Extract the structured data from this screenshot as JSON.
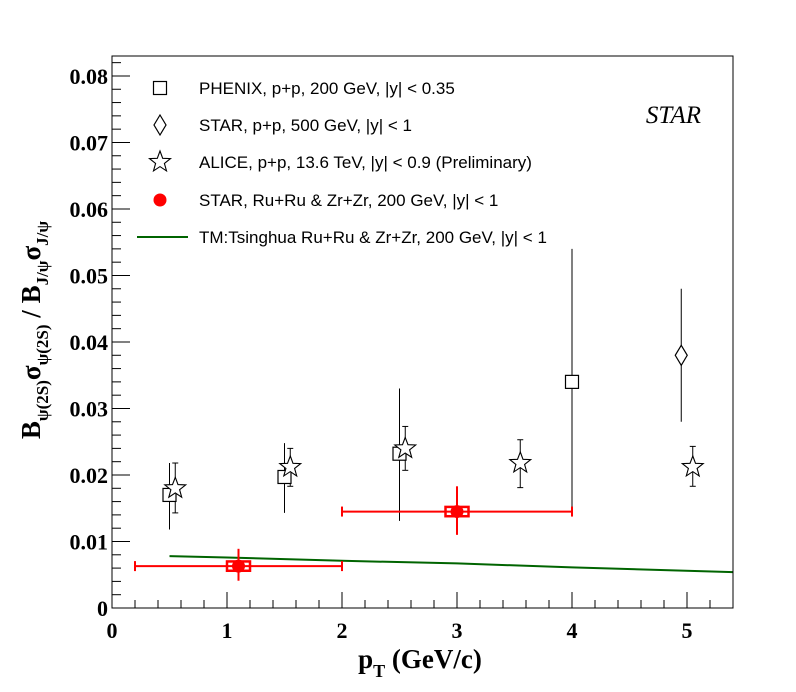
{
  "chart_data": {
    "type": "scatter",
    "experiment_label": "STAR",
    "xlabel": {
      "main": "p",
      "sub": "T",
      "rest": " (GeV/c)"
    },
    "ylabel": {
      "parts": [
        {
          "t": "B",
          "s": "n"
        },
        {
          "t": "ψ(2S)",
          "s": "sub"
        },
        {
          "t": "σ",
          "s": "n"
        },
        {
          "t": "ψ(2S)",
          "s": "sub"
        },
        {
          "t": " / B",
          "s": "n"
        },
        {
          "t": "J/ψ",
          "s": "sub"
        },
        {
          "t": "σ",
          "s": "n"
        },
        {
          "t": "J/ψ",
          "s": "sub"
        }
      ]
    },
    "xlim": [
      0,
      5.4
    ],
    "ylim": [
      0,
      0.083
    ],
    "x_ticks": [
      0,
      1,
      2,
      3,
      4,
      5
    ],
    "x_tick_labels": [
      "0",
      "1",
      "2",
      "3",
      "4",
      "5"
    ],
    "y_ticks": [
      0,
      0.01,
      0.02,
      0.03,
      0.04,
      0.05,
      0.06,
      0.07,
      0.08
    ],
    "y_tick_labels": [
      "0",
      "0.01",
      "0.02",
      "0.03",
      "0.04",
      "0.05",
      "0.06",
      "0.07",
      "0.08"
    ],
    "legend_position": "top-left",
    "series": [
      {
        "name": "PHENIX, p+p, 200 GeV, |y| < 0.35",
        "marker": "open-square",
        "color": "#000000",
        "points": [
          {
            "x": 0.5,
            "y": 0.017,
            "ylo": 0.0118,
            "yhi": 0.0218
          },
          {
            "x": 1.5,
            "y": 0.0197,
            "ylo": 0.0143,
            "yhi": 0.0248
          },
          {
            "x": 2.5,
            "y": 0.0232,
            "ylo": 0.0131,
            "yhi": 0.033
          },
          {
            "x": 4.0,
            "y": 0.034,
            "ylo": 0.0145,
            "yhi": 0.054
          }
        ]
      },
      {
        "name": "STAR, p+p, 500 GeV, |y| < 1",
        "marker": "open-diamond",
        "color": "#000000",
        "points": [
          {
            "x": 4.95,
            "y": 0.038,
            "ylo": 0.028,
            "yhi": 0.048
          }
        ]
      },
      {
        "name": "ALICE, p+p, 13.6 TeV, |y| < 0.9 (Preliminary)",
        "marker": "open-star",
        "color": "#000000",
        "points": [
          {
            "x": 0.55,
            "y": 0.018,
            "ylo": 0.0143,
            "yhi": 0.0218
          },
          {
            "x": 1.55,
            "y": 0.0212,
            "ylo": 0.0183,
            "yhi": 0.024
          },
          {
            "x": 2.55,
            "y": 0.024,
            "ylo": 0.0207,
            "yhi": 0.0273
          },
          {
            "x": 3.55,
            "y": 0.0218,
            "ylo": 0.0181,
            "yhi": 0.0253
          },
          {
            "x": 5.05,
            "y": 0.0212,
            "ylo": 0.0183,
            "yhi": 0.0243
          }
        ]
      },
      {
        "name": "STAR, Ru+Ru & Zr+Zr, 200 GeV, |y| < 1",
        "marker": "filled-circle",
        "color": "#ff0000",
        "points": [
          {
            "x": 1.1,
            "y": 0.0063,
            "xlo": 0.2,
            "xhi": 2.0,
            "ylo": 0.0041,
            "yhi": 0.0089,
            "sys_dx": 0.1,
            "sys_dy": 0.0007
          },
          {
            "x": 3.0,
            "y": 0.0145,
            "xlo": 2.0,
            "xhi": 4.0,
            "ylo": 0.011,
            "yhi": 0.0183,
            "sys_dx": 0.1,
            "sys_dy": 0.0007
          }
        ]
      },
      {
        "name": "TM:Tsinghua Ru+Ru & Zr+Zr, 200 GeV, |y| < 1",
        "marker": "line",
        "color": "#006400",
        "x": [
          0.5,
          1.0,
          2.0,
          3.0,
          4.0,
          5.4
        ],
        "y": [
          0.0078,
          0.0076,
          0.0071,
          0.0067,
          0.0061,
          0.0054
        ]
      }
    ]
  }
}
